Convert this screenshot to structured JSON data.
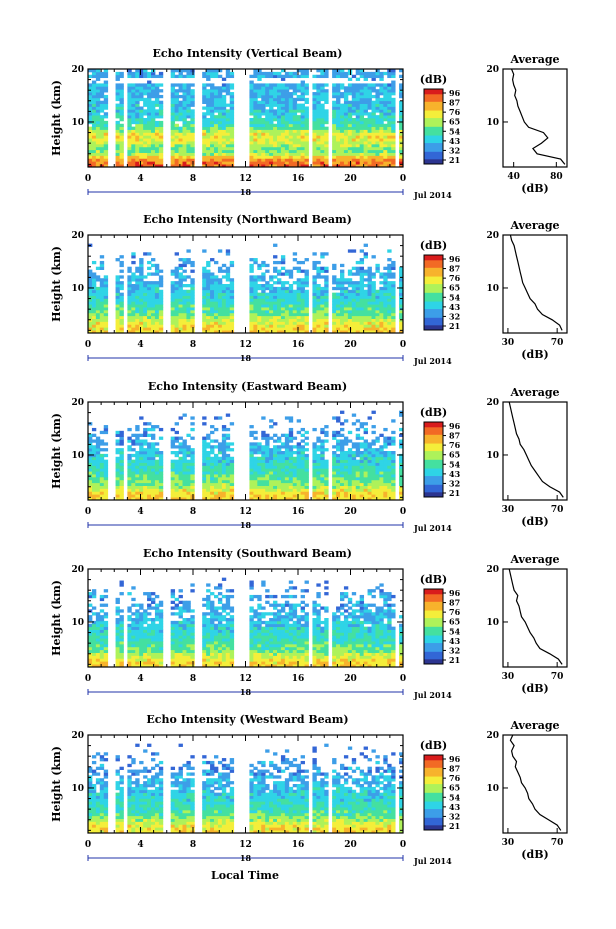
{
  "figure": {
    "x_axis_title": "Local Time",
    "date_label": "Jul 2014",
    "day_marker": "18",
    "time_ticks": [
      "0",
      "4",
      "8",
      "12",
      "16",
      "20",
      "0"
    ]
  },
  "colorbar": {
    "unit": "(dB)",
    "tick_labels": [
      "96",
      "87",
      "76",
      "65",
      "54",
      "43",
      "32",
      "21"
    ],
    "colors": [
      "#2c3590",
      "#3366d6",
      "#3d9ee8",
      "#2fd4e6",
      "#44e0a0",
      "#aef25a",
      "#f4ee3a",
      "#f7b32c",
      "#f26a25",
      "#d91c1c"
    ]
  },
  "chart_data": [
    {
      "type": "heatmap",
      "title": "Echo Intensity (Vertical Beam)",
      "ylabel": "Height (km)",
      "xlim": [
        0,
        24
      ],
      "ylim": [
        1.5,
        20
      ],
      "yticks": [
        "20",
        "10"
      ],
      "data_gaps_hours": [
        [
          1.55,
          2.0
        ],
        [
          2.6,
          2.95
        ],
        [
          5.85,
          6.4
        ],
        [
          8.1,
          8.7
        ],
        [
          11.0,
          12.2
        ],
        [
          16.75,
          17.2
        ],
        [
          18.2,
          18.6
        ],
        [
          23.45,
          23.7
        ]
      ],
      "average_profile": {
        "title": "Average",
        "xlabel": "(dB)",
        "xlim": [
          30,
          90
        ],
        "xticks": [
          "40",
          "80"
        ],
        "yticks": [
          "20",
          "10"
        ],
        "height_km": [
          2,
          3,
          4,
          5,
          6,
          7,
          8,
          9,
          10,
          11,
          12,
          13,
          14,
          15,
          16,
          17,
          18,
          19,
          20
        ],
        "values_db": [
          88,
          84,
          62,
          58,
          66,
          72,
          68,
          54,
          50,
          48,
          46,
          44,
          43,
          41,
          42,
          40,
          39,
          40,
          38
        ]
      }
    },
    {
      "type": "heatmap",
      "title": "Echo Intensity (Northward Beam)",
      "ylabel": "Height (km)",
      "xlim": [
        0,
        24
      ],
      "ylim": [
        1.5,
        20
      ],
      "yticks": [
        "20",
        "10"
      ],
      "data_gaps_hours": [
        [
          1.55,
          2.0
        ],
        [
          2.6,
          2.95
        ],
        [
          5.85,
          6.4
        ],
        [
          8.1,
          8.7
        ],
        [
          11.0,
          12.2
        ],
        [
          16.75,
          17.2
        ],
        [
          18.2,
          18.6
        ],
        [
          23.45,
          23.7
        ]
      ],
      "average_profile": {
        "title": "Average",
        "xlabel": "(dB)",
        "xlim": [
          26,
          78
        ],
        "xticks": [
          "30",
          "70"
        ],
        "yticks": [
          "20",
          "10"
        ],
        "height_km": [
          2,
          3,
          4,
          5,
          6,
          7,
          8,
          9,
          10,
          11,
          12,
          13,
          14,
          15,
          16,
          17,
          18,
          19,
          20
        ],
        "values_db": [
          74,
          72,
          66,
          58,
          54,
          52,
          48,
          46,
          44,
          42,
          41,
          40,
          39,
          38,
          37,
          36,
          35,
          33,
          32
        ]
      }
    },
    {
      "type": "heatmap",
      "title": "Echo Intensity (Eastward Beam)",
      "ylabel": "Height (km)",
      "xlim": [
        0,
        24
      ],
      "ylim": [
        1.5,
        20
      ],
      "yticks": [
        "20",
        "10"
      ],
      "data_gaps_hours": [
        [
          1.55,
          2.0
        ],
        [
          2.6,
          2.95
        ],
        [
          5.85,
          6.4
        ],
        [
          8.1,
          8.7
        ],
        [
          11.0,
          12.2
        ],
        [
          16.75,
          17.2
        ],
        [
          18.2,
          18.6
        ],
        [
          23.45,
          23.7
        ]
      ],
      "average_profile": {
        "title": "Average",
        "xlabel": "(dB)",
        "xlim": [
          26,
          78
        ],
        "xticks": [
          "30",
          "70"
        ],
        "yticks": [
          "20",
          "10"
        ],
        "height_km": [
          2,
          3,
          4,
          5,
          6,
          7,
          8,
          9,
          10,
          11,
          12,
          13,
          14,
          15,
          16,
          17,
          18,
          19,
          20
        ],
        "values_db": [
          75,
          72,
          64,
          58,
          55,
          52,
          49,
          47,
          45,
          43,
          40,
          39,
          37,
          36,
          35,
          34,
          33,
          32,
          31
        ]
      }
    },
    {
      "type": "heatmap",
      "title": "Echo Intensity (Southward Beam)",
      "ylabel": "Height (km)",
      "xlim": [
        0,
        24
      ],
      "ylim": [
        1.5,
        20
      ],
      "yticks": [
        "20",
        "10"
      ],
      "data_gaps_hours": [
        [
          1.55,
          2.0
        ],
        [
          2.6,
          2.95
        ],
        [
          5.85,
          6.4
        ],
        [
          8.1,
          8.7
        ],
        [
          11.0,
          12.2
        ],
        [
          16.75,
          17.2
        ],
        [
          18.2,
          18.6
        ],
        [
          23.45,
          23.7
        ]
      ],
      "average_profile": {
        "title": "Average",
        "xlabel": "(dB)",
        "xlim": [
          26,
          78
        ],
        "xticks": [
          "30",
          "70"
        ],
        "yticks": [
          "20",
          "10"
        ],
        "height_km": [
          2,
          3,
          4,
          5,
          6,
          7,
          8,
          9,
          10,
          11,
          12,
          13,
          14,
          15,
          16,
          17,
          18,
          19,
          20
        ],
        "values_db": [
          74,
          71,
          64,
          56,
          53,
          51,
          48,
          46,
          44,
          41,
          40,
          39,
          37,
          38,
          35,
          34,
          33,
          32,
          31
        ]
      }
    },
    {
      "type": "heatmap",
      "title": "Echo Intensity (Westward Beam)",
      "ylabel": "Height (km)",
      "xlim": [
        0,
        24
      ],
      "ylim": [
        1.5,
        20
      ],
      "yticks": [
        "20",
        "10"
      ],
      "data_gaps_hours": [
        [
          1.55,
          2.0
        ],
        [
          2.6,
          2.95
        ],
        [
          5.85,
          6.4
        ],
        [
          8.1,
          8.7
        ],
        [
          11.0,
          12.2
        ],
        [
          16.75,
          17.2
        ],
        [
          18.2,
          18.6
        ],
        [
          23.45,
          23.7
        ]
      ],
      "average_profile": {
        "title": "Average",
        "xlabel": "(dB)",
        "xlim": [
          26,
          78
        ],
        "xticks": [
          "30",
          "70"
        ],
        "yticks": [
          "20",
          "10"
        ],
        "height_km": [
          2,
          3,
          4,
          5,
          6,
          7,
          8,
          9,
          10,
          11,
          12,
          13,
          14,
          15,
          16,
          17,
          18,
          19,
          20
        ],
        "values_db": [
          73,
          70,
          63,
          56,
          52,
          50,
          47,
          46,
          44,
          41,
          40,
          38,
          36,
          37,
          34,
          33,
          35,
          32,
          34
        ]
      }
    }
  ]
}
